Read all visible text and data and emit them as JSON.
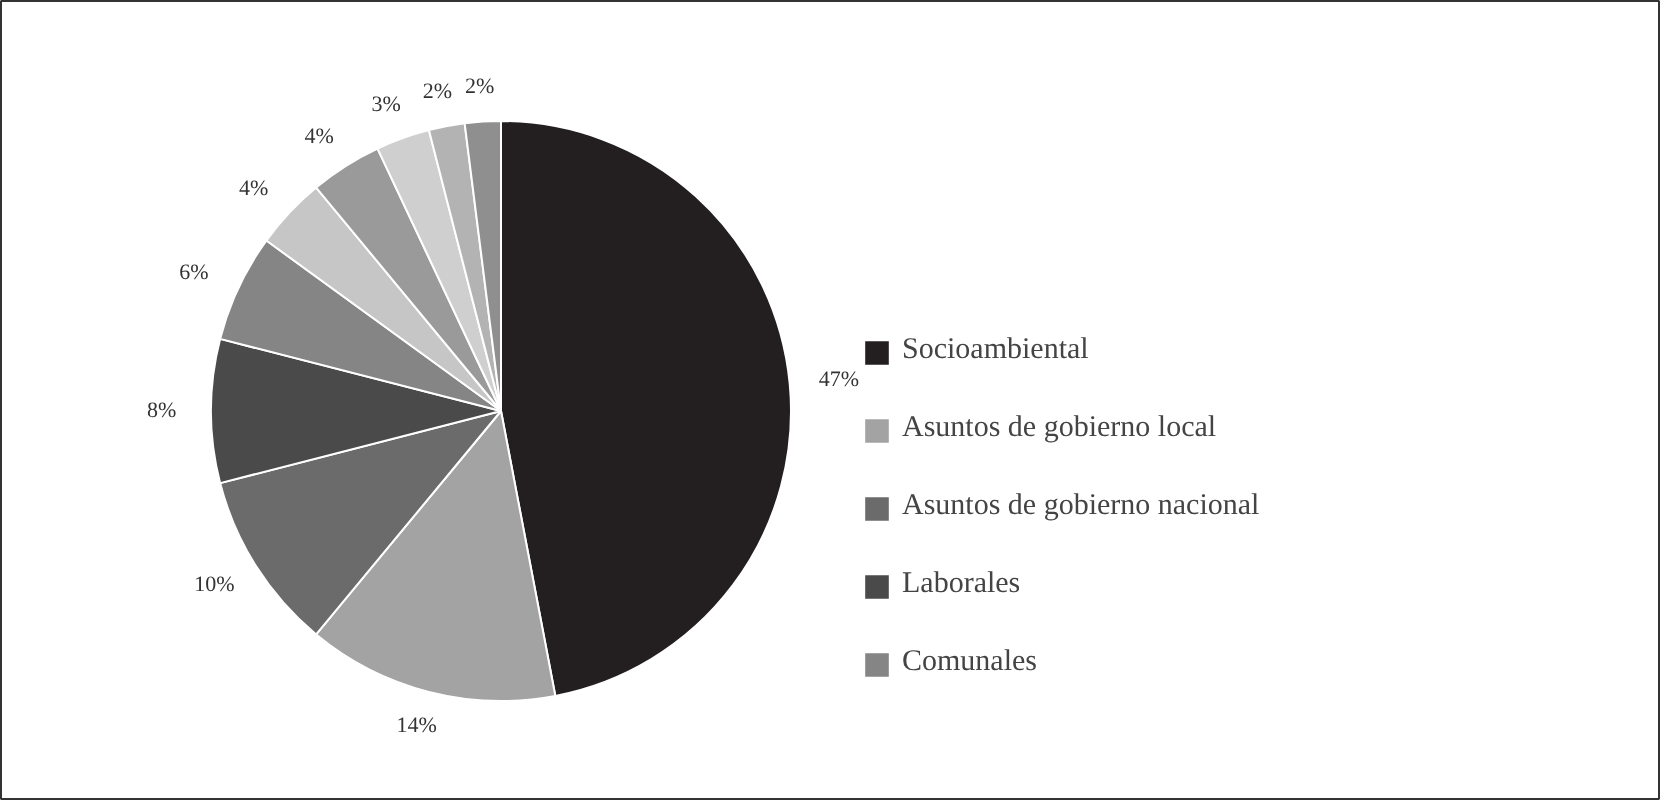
{
  "chart_data": {
    "type": "pie",
    "categories": [
      "Socioambiental",
      "Asuntos de gobierno local",
      "Asuntos de gobierno nacional",
      "Laborales",
      "Comunales",
      null,
      null,
      null,
      null,
      null
    ],
    "values": [
      47,
      14,
      10,
      8,
      6,
      4,
      4,
      3,
      2,
      2
    ],
    "value_labels": [
      "47%",
      "14%",
      "10%",
      "8%",
      "6%",
      "4%",
      "4%",
      "3%",
      "2%",
      "2%"
    ],
    "colors": [
      "#231f20",
      "#a3a3a3",
      "#6b6b6b",
      "#4a4a4a",
      "#858585",
      "#c6c6c6",
      "#9a9a9a",
      "#cfcfcf",
      "#b3b3b3",
      "#8f8f8f"
    ],
    "legend": "right"
  }
}
